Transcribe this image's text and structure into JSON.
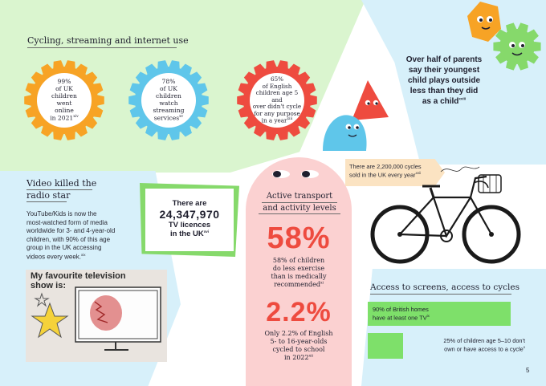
{
  "cycling_section": {
    "title": "Cycling, streaming and internet use",
    "stats": [
      {
        "pct": "99%",
        "text1": "of UK",
        "text2": "children",
        "text3": "went",
        "text4": "online",
        "text5": "in 2021",
        "ref": "xiv",
        "color": "#f7a325"
      },
      {
        "pct": "78%",
        "text1": "of UK",
        "text2": "children",
        "text3": "watch",
        "text4": "streaming",
        "text5": "services",
        "ref": "xv",
        "color": "#5fc6ea"
      },
      {
        "pct": "65%",
        "text1": "of English",
        "text2": "children age 5 and",
        "text3": "over didn't cycle",
        "text4": "for any purpose",
        "text5": "in a year",
        "ref": "xiii",
        "color": "#ee4b3f"
      }
    ]
  },
  "parents": {
    "line1": "Over half of parents",
    "line2": "say their youngest",
    "line3": "child plays outside",
    "line4": "less than they did",
    "line5": "as a child",
    "ref": "xviii"
  },
  "video": {
    "title_line1": "Video killed the",
    "title_line2": "radio star",
    "body": [
      "YouTube/Kids is now the",
      "most-watched form of media",
      "worldwide for 3- and 4-year-old",
      "children, with 90% of this age",
      "group in the UK accessing",
      "videos every week."
    ],
    "ref": "xix",
    "drawing_caption_line1": "My favourite television",
    "drawing_caption_line2": "show is:"
  },
  "tv": {
    "line1": "There are",
    "number": "24,347,970",
    "line2": "TV licences",
    "line3": "in the UK",
    "ref": "xvi"
  },
  "active": {
    "title_line1": "Active transport",
    "title_line2": "and activity levels",
    "stat1_big": "58%",
    "stat1_text": [
      "58% of children",
      "do less exercise",
      "than is medically",
      "recommended"
    ],
    "stat1_ref": "xi",
    "stat2_big": "2.2%",
    "stat2_text": [
      "Only 2.2% of English",
      "5- to 16-year-olds",
      "cycled to school",
      "in 2022"
    ],
    "stat2_ref": "xii"
  },
  "cycles_tag": {
    "line1": "There are 2,200,000 cycles",
    "line2": "sold in the UK every year",
    "ref": "xvii"
  },
  "access": {
    "title": "Access to screens, access to cycles",
    "bars": [
      {
        "line1": "90% of British homes",
        "line2": "have at least one TV",
        "ref": "ix",
        "fraction": 0.9
      },
      {
        "line1": "25% of children age 5–10 don't",
        "line2": "own or have access to a cycle",
        "ref": "x",
        "fraction": 0.25
      }
    ]
  },
  "page_number": "5",
  "colors": {
    "green": "#86d96b",
    "red": "#ee4b3f",
    "orange": "#f7a325",
    "blue": "#5fc6ea",
    "bar_green": "#7ee06a"
  }
}
